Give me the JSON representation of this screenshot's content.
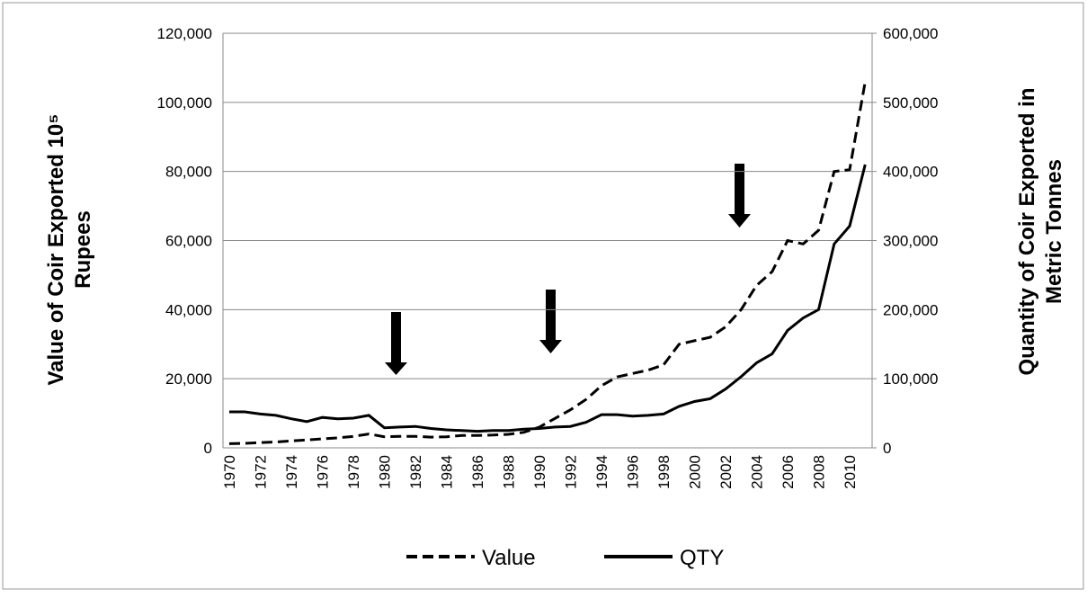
{
  "chart_data": {
    "type": "line",
    "ylabel": [
      "Value of Coir Exported 10⁵",
      "Rupees"
    ],
    "y2label": [
      "Quantity of Coir Exported in",
      "Metric Tonnes"
    ],
    "categories": [
      "1970",
      null,
      "1972",
      null,
      "1974",
      null,
      "1976",
      null,
      "1978",
      null,
      "1980",
      null,
      "1982",
      null,
      "1984",
      null,
      "1986",
      null,
      "1988",
      null,
      "1990",
      null,
      "1992",
      null,
      "1994",
      null,
      "1996",
      null,
      "1998",
      null,
      "2000",
      null,
      "2002",
      null,
      "2004",
      null,
      "2006",
      null,
      "2008",
      null,
      "2010",
      null
    ],
    "series": [
      {
        "name": "Value",
        "color": "#000000",
        "dash": true,
        "values": [
          1200,
          1300,
          1500,
          1700,
          2000,
          2300,
          2600,
          2900,
          3300,
          4000,
          3200,
          3300,
          3300,
          3100,
          3200,
          3600,
          3600,
          3700,
          3900,
          4500,
          6000,
          8500,
          11000,
          14000,
          18000,
          20500,
          21500,
          22500,
          24000,
          30000,
          31000,
          32000,
          35000,
          40000,
          47000,
          51000,
          60000,
          59000,
          63000,
          80000,
          80500,
          106000
        ]
      },
      {
        "name": "QTY",
        "color": "#000000",
        "dash": false,
        "axis": "y2",
        "values": [
          52000,
          52000,
          49000,
          47000,
          42000,
          38000,
          44000,
          42000,
          43000,
          47000,
          29000,
          30000,
          31000,
          28000,
          26000,
          25000,
          24000,
          25000,
          25000,
          27000,
          28000,
          30000,
          31000,
          37000,
          48000,
          48000,
          46000,
          47000,
          49000,
          60000,
          67000,
          71000,
          85000,
          103000,
          123000,
          136000,
          170000,
          188000,
          200000,
          295000,
          321000,
          410000
        ]
      }
    ],
    "ylim": [
      0,
      120000
    ],
    "yticks": [
      0,
      {
        "value": 20000,
        "label": "20,000"
      },
      {
        "value": 40000,
        "label": "40,000"
      },
      {
        "value": 60000,
        "label": "60,000"
      },
      {
        "value": 80000,
        "label": "80,000"
      },
      {
        "value": 100000,
        "label": "100,000"
      },
      {
        "value": 120000,
        "label": "120,000"
      }
    ],
    "y2lim": [
      0,
      600000
    ],
    "y2ticks": [
      0,
      {
        "value": 100000,
        "label": "100,000"
      },
      {
        "value": 200000,
        "label": "200,000"
      },
      {
        "value": 300000,
        "label": "300,000"
      },
      {
        "value": 400000,
        "label": "400,000"
      },
      {
        "value": 500000,
        "label": "500,000"
      },
      {
        "value": 600000,
        "label": "600,000"
      }
    ],
    "grid": true,
    "legend": "bottom"
  }
}
